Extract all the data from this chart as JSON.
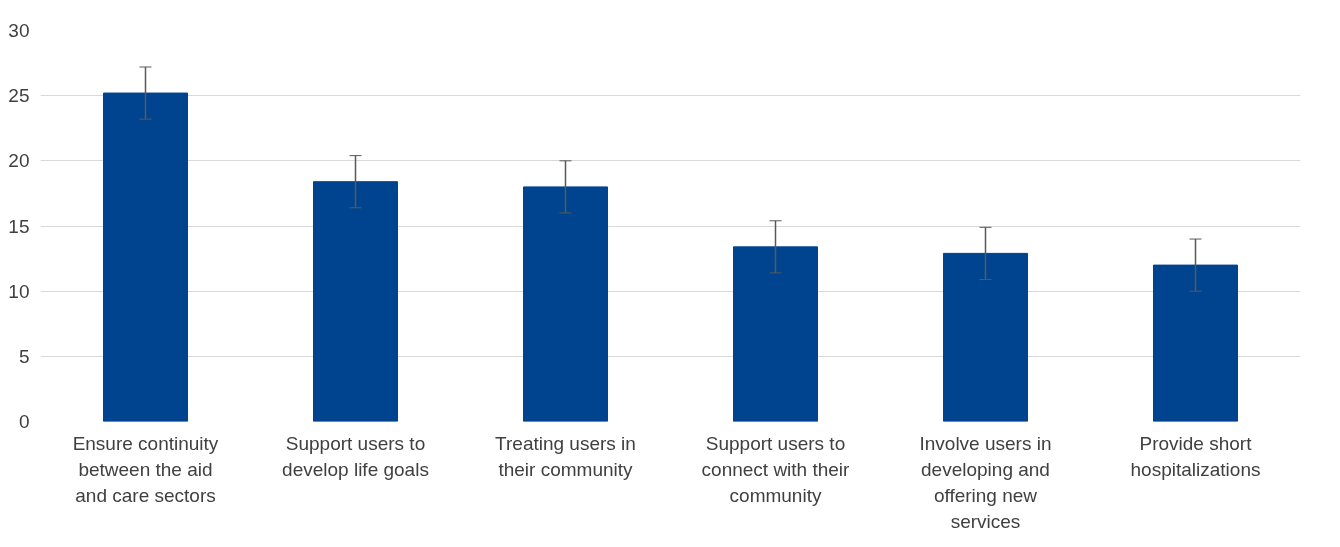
{
  "chart_data": {
    "type": "bar",
    "categories": [
      "Ensure continuity between the aid and care sectors",
      "Support users to develop life goals",
      "Treating users in their community",
      "Support users to connect with their community",
      "Involve users in developing and offering new services",
      "Provide short hospitalizations"
    ],
    "values": [
      25.2,
      18.4,
      18.0,
      13.4,
      12.9,
      12.0
    ],
    "errors": [
      2,
      2,
      2,
      2,
      2,
      2
    ],
    "color": "#00448f",
    "ylim": [
      0,
      30
    ],
    "yticks": [
      0,
      5,
      10,
      15,
      20,
      25,
      30
    ],
    "grid": "y"
  }
}
